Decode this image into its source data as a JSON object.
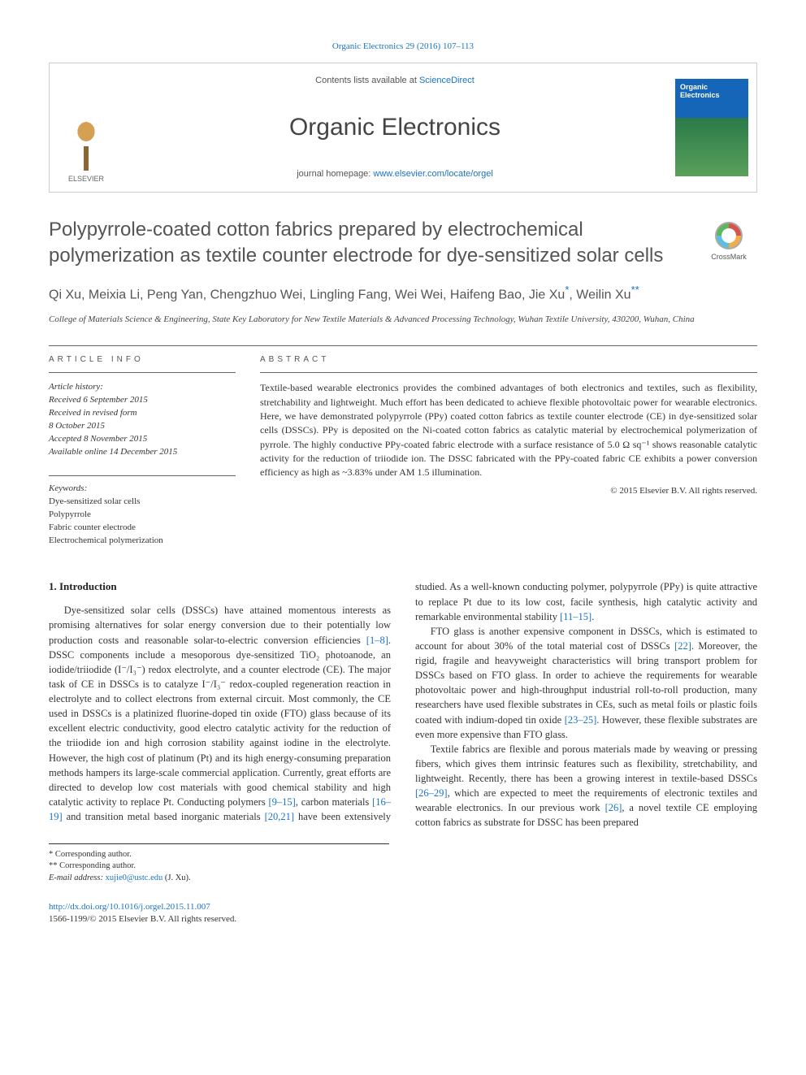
{
  "citation": "Organic Electronics 29 (2016) 107–113",
  "header": {
    "contents_prefix": "Contents lists available at ",
    "contents_link": "ScienceDirect",
    "journal_name": "Organic Electronics",
    "homepage_prefix": "journal homepage: ",
    "homepage_url": "www.elsevier.com/locate/orgel",
    "publisher": "ELSEVIER",
    "cover_title": "Organic Electronics"
  },
  "article": {
    "title": "Polypyrrole-coated cotton fabrics prepared by electrochemical polymerization as textile counter electrode for dye-sensitized solar cells",
    "crossmark": "CrossMark",
    "authors_line": "Qi Xu, Meixia Li, Peng Yan, Chengzhuo Wei, Lingling Fang, Wei Wei, Haifeng Bao, Jie Xu",
    "author_star1": "*",
    "author_last": "Weilin Xu",
    "author_star2": "**",
    "affiliation": "College of Materials Science & Engineering, State Key Laboratory for New Textile Materials & Advanced Processing Technology, Wuhan Textile University, 430200, Wuhan, China"
  },
  "info": {
    "header": "ARTICLE INFO",
    "history_hdr": "Article history:",
    "received": "Received 6 September 2015",
    "revised1": "Received in revised form",
    "revised2": "8 October 2015",
    "accepted": "Accepted 8 November 2015",
    "online": "Available online 14 December 2015",
    "keywords_hdr": "Keywords:",
    "kw1": "Dye-sensitized solar cells",
    "kw2": "Polypyrrole",
    "kw3": "Fabric counter electrode",
    "kw4": "Electrochemical polymerization"
  },
  "abstract": {
    "header": "ABSTRACT",
    "text": "Textile-based wearable electronics provides the combined advantages of both electronics and textiles, such as flexibility, stretchability and lightweight. Much effort has been dedicated to achieve flexible photovoltaic power for wearable electronics. Here, we have demonstrated polypyrrole (PPy) coated cotton fabrics as textile counter electrode (CE) in dye-sensitized solar cells (DSSCs). PPy is deposited on the Ni-coated cotton fabrics as catalytic material by electrochemical polymerization of pyrrole. The highly conductive PPy-coated fabric electrode with a surface resistance of 5.0 Ω sq⁻¹ shows reasonable catalytic activity for the reduction of triiodide ion. The DSSC fabricated with the PPy-coated fabric CE exhibits a power conversion efficiency as high as ~3.83% under AM 1.5 illumination.",
    "copyright": "© 2015 Elsevier B.V. All rights reserved."
  },
  "body": {
    "section_title": "1. Introduction",
    "p1a": "Dye-sensitized solar cells (DSSCs) have attained momentous interests as promising alternatives for solar energy conversion due to their potentially low production costs and reasonable solar-to-electric conversion efficiencies ",
    "r1": "[1–8]",
    "p1b": ". DSSC components include a mesoporous dye-sensitized TiO₂ photoanode, an iodide/triiodide (I⁻/I₃⁻) redox electrolyte, and a counter electrode (CE). The major task of CE in DSSCs is to catalyze I⁻/I₃⁻ redox-coupled regeneration reaction in electrolyte and to collect electrons from external circuit. Most commonly, the CE used in DSSCs is a platinized fluorine-doped tin oxide (FTO) glass because of its excellent electric conductivity, good electro catalytic activity for the reduction of the triiodide ion and high corrosion stability against iodine in the electrolyte. However, the high cost of platinum (Pt) and its high energy-consuming preparation methods hampers its large-scale commercial application. Currently, great efforts are directed to develop low cost materials with good chemical stability and high ",
    "p2a": "catalytic activity to replace Pt. Conducting polymers ",
    "r2": "[9–15]",
    "p2b": ", carbon materials ",
    "r3": "[16–19]",
    "p2c": " and transition metal based inorganic materials ",
    "r4": "[20,21]",
    "p2d": " have been extensively studied. As a well-known conducting polymer, polypyrrole (PPy) is quite attractive to replace Pt due to its low cost, facile synthesis, high catalytic activity and remarkable environmental stability ",
    "r5": "[11–15]",
    "p2e": ".",
    "p3a": "FTO glass is another expensive component in DSSCs, which is estimated to account for about 30% of the total material cost of DSSCs ",
    "r6": "[22]",
    "p3b": ". Moreover, the rigid, fragile and heavyweight characteristics will bring transport problem for DSSCs based on FTO glass. In order to achieve the requirements for wearable photovoltaic power and high-throughput industrial roll-to-roll production, many researchers have used flexible substrates in CEs, such as metal foils or plastic foils coated with indium-doped tin oxide ",
    "r7": "[23–25]",
    "p3c": ". However, these flexible substrates are even more expensive than FTO glass.",
    "p4a": "Textile fabrics are flexible and porous materials made by weaving or pressing fibers, which gives them intrinsic features such as flexibility, stretchability, and lightweight. Recently, there has been a growing interest in textile-based DSSCs ",
    "r8": "[26–29]",
    "p4b": ", which are expected to meet the requirements of electronic textiles and wearable electronics. In our previous work ",
    "r9": "[26]",
    "p4c": ", a novel textile CE employing cotton fabrics as substrate for DSSC has been prepared"
  },
  "footnotes": {
    "c1": "* Corresponding author.",
    "c2": "** Corresponding author.",
    "email_label": "E-mail address: ",
    "email": "xujie0@ustc.edu",
    "email_suffix": " (J. Xu)."
  },
  "doi": {
    "url": "http://dx.doi.org/10.1016/j.orgel.2015.11.007",
    "issn": "1566-1199/© 2015 Elsevier B.V. All rights reserved."
  },
  "colors": {
    "link": "#1a73c4",
    "text": "#333333",
    "heading": "#555555",
    "rule": "#666666"
  }
}
